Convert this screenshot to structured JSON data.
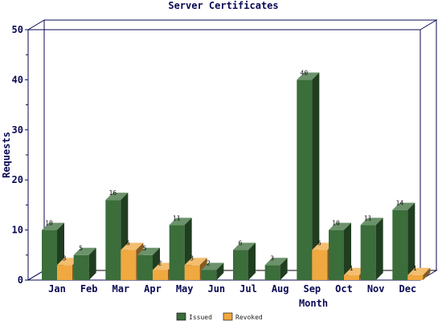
{
  "chart_data": {
    "type": "bar",
    "title": "Server Certificates",
    "xlabel": "Month",
    "ylabel": "Requests",
    "ylim": [
      0,
      50
    ],
    "yticks": [
      "0",
      "10",
      "20",
      "30",
      "40",
      "50"
    ],
    "categories": [
      "Jan",
      "Feb",
      "Mar",
      "Apr",
      "May",
      "Jun",
      "Jul",
      "Aug",
      "Sep",
      "Oct",
      "Nov",
      "Dec"
    ],
    "series": [
      {
        "name": "Issued",
        "color": "#3b6e3a",
        "values": [
          10,
          5,
          16,
          5,
          11,
          2,
          6,
          3,
          40,
          10,
          11,
          14
        ],
        "labels": [
          "10",
          "5",
          "16",
          "5",
          "11",
          "2",
          "6",
          "3",
          "40",
          "10",
          "11",
          "14"
        ]
      },
      {
        "name": "Revoked",
        "color": "#f0a840",
        "values": [
          3,
          0,
          6,
          2,
          3,
          0,
          0,
          0,
          6,
          1,
          0,
          1
        ],
        "labels": [
          "3",
          "",
          "6",
          "2",
          "3",
          "",
          "",
          "",
          "6",
          "1",
          "",
          "1"
        ]
      }
    ],
    "grid": false,
    "legend_position": "bottom-center"
  }
}
